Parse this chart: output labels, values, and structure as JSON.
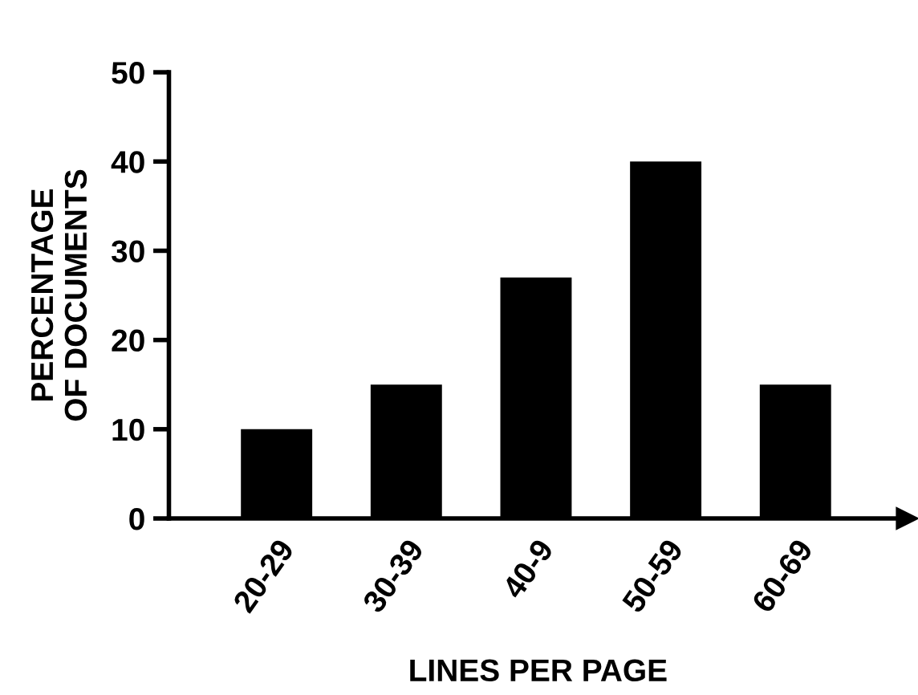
{
  "chart_data": {
    "type": "bar",
    "categories": [
      "20-29",
      "30-39",
      "40-9",
      "50-59",
      "60-69"
    ],
    "values": [
      10,
      15,
      27,
      40,
      15
    ],
    "color": "#000000",
    "xlabel": "LINES PER PAGE",
    "ylabel": "PERCENTAGE\nOF DOCUMENTS",
    "ylim": [
      0,
      50
    ],
    "yticks": [
      0,
      10,
      20,
      30,
      40,
      50
    ],
    "grid": false,
    "legend": false
  }
}
